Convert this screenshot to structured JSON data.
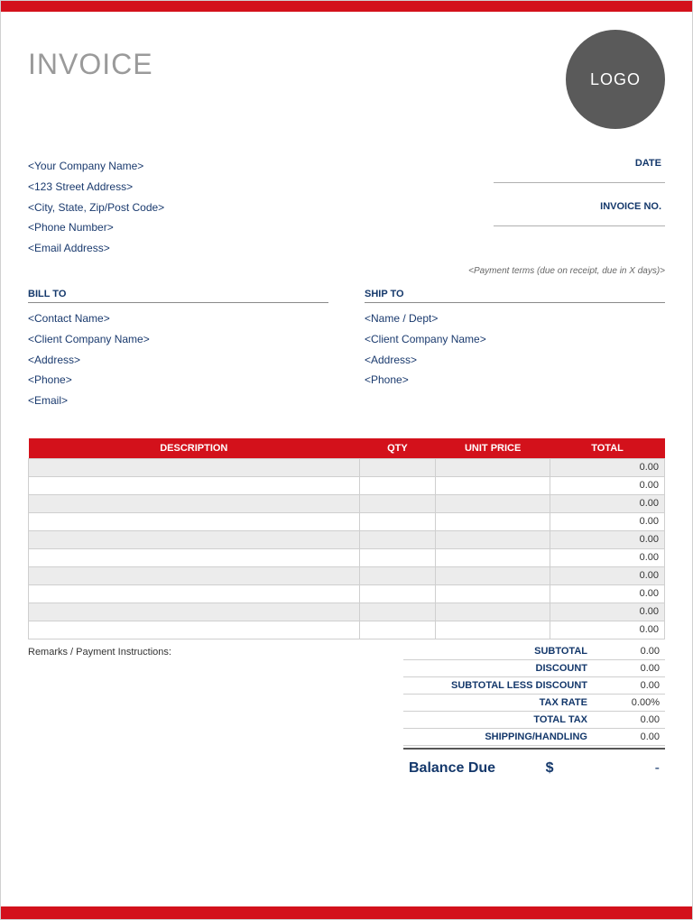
{
  "colors": {
    "accent": "#d3111b",
    "header_text": "#9a9a9a",
    "label_text": "#14386b",
    "body_text": "#1a3a6e",
    "logo_bg": "#5a5a5a",
    "row_alt": "#ececec",
    "border": "#cfcfcf"
  },
  "title": "INVOICE",
  "logo_text": "LOGO",
  "company": {
    "name": "<Your Company Name>",
    "street": "<123 Street Address>",
    "city": "<City, State, Zip/Post Code>",
    "phone": "<Phone Number>",
    "email": "<Email Address>"
  },
  "meta": {
    "date_label": "DATE",
    "invoice_no_label": "INVOICE NO.",
    "payment_terms": "<Payment terms (due on receipt, due in X days)>"
  },
  "bill_to": {
    "heading": "BILL TO",
    "contact": "<Contact Name>",
    "company": "<Client Company Name>",
    "address": "<Address>",
    "phone": "<Phone>",
    "email": "<Email>"
  },
  "ship_to": {
    "heading": "SHIP TO",
    "name": "<Name / Dept>",
    "company": "<Client Company Name>",
    "address": "<Address>",
    "phone": "<Phone>"
  },
  "table": {
    "columns": [
      "DESCRIPTION",
      "QTY",
      "UNIT PRICE",
      "TOTAL"
    ],
    "rows": [
      {
        "desc": "",
        "qty": "",
        "price": "",
        "total": "0.00"
      },
      {
        "desc": "",
        "qty": "",
        "price": "",
        "total": "0.00"
      },
      {
        "desc": "",
        "qty": "",
        "price": "",
        "total": "0.00"
      },
      {
        "desc": "",
        "qty": "",
        "price": "",
        "total": "0.00"
      },
      {
        "desc": "",
        "qty": "",
        "price": "",
        "total": "0.00"
      },
      {
        "desc": "",
        "qty": "",
        "price": "",
        "total": "0.00"
      },
      {
        "desc": "",
        "qty": "",
        "price": "",
        "total": "0.00"
      },
      {
        "desc": "",
        "qty": "",
        "price": "",
        "total": "0.00"
      },
      {
        "desc": "",
        "qty": "",
        "price": "",
        "total": "0.00"
      },
      {
        "desc": "",
        "qty": "",
        "price": "",
        "total": "0.00"
      }
    ]
  },
  "remarks_label": "Remarks / Payment Instructions:",
  "totals": {
    "subtotal_label": "SUBTOTAL",
    "subtotal": "0.00",
    "discount_label": "DISCOUNT",
    "discount": "0.00",
    "subtotal_less_label": "SUBTOTAL LESS DISCOUNT",
    "subtotal_less": "0.00",
    "tax_rate_label": "TAX RATE",
    "tax_rate": "0.00%",
    "total_tax_label": "TOTAL TAX",
    "total_tax": "0.00",
    "shipping_label": "SHIPPING/HANDLING",
    "shipping": "0.00",
    "balance_label": "Balance Due",
    "currency": "$",
    "balance": "-"
  }
}
